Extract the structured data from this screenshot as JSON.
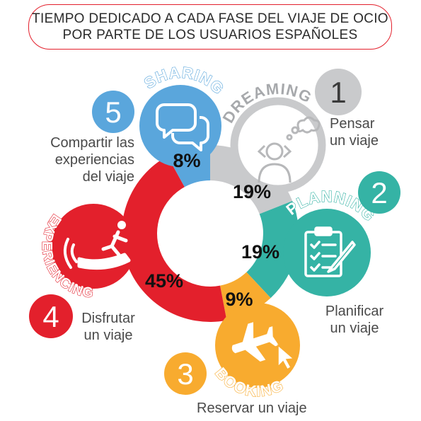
{
  "title": "TIEMPO DEDICADO A CADA FASE DEL VIAJE DE OCIO\nPOR PARTE DE LOS USUARIOS ESPAÑOLES",
  "colors": {
    "dreaming": "#c9cacc",
    "planning": "#35b3a5",
    "booking": "#f8ab2f",
    "experiencing": "#e3202c",
    "sharing": "#5aa6dc",
    "dreaming_number": "#a7a9ac",
    "dreaming_icon": "#b7b8ba",
    "text": "#4a4a4a"
  },
  "chart_data": {
    "type": "pie",
    "categories": [
      "DREAMING",
      "PLANNING",
      "BOOKING",
      "EXPERIENCING",
      "SHARING"
    ],
    "values": [
      19,
      19,
      9,
      45,
      8
    ],
    "value_labels": [
      "19%",
      "19%",
      "9%",
      "45%",
      "8%"
    ],
    "numbers": [
      "1",
      "2",
      "3",
      "4",
      "5"
    ],
    "descriptions": [
      "Pensar\nun viaje",
      "Planificar\nun viaje",
      "Reservar un viaje",
      "Disfrutar\nun viaje",
      "Compartir las\nexperiencias\ndel viaje"
    ],
    "icons": [
      "thinking-person-icon",
      "clipboard-checklist-icon",
      "airplane-cursor-icon",
      "jet-ski-icon",
      "speech-bubbles-icon"
    ]
  }
}
